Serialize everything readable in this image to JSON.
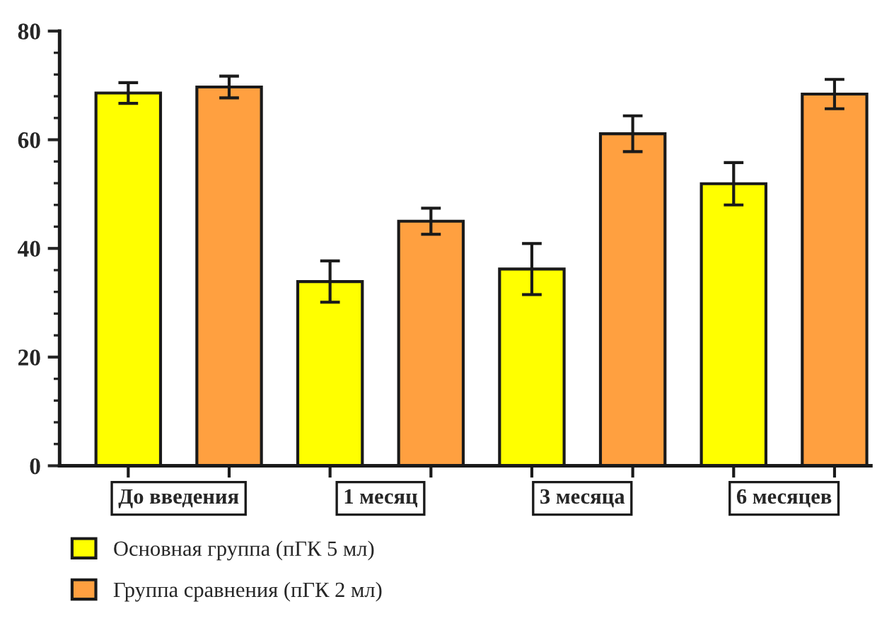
{
  "chart_data": {
    "type": "bar",
    "categories": [
      "До введения",
      "1 месяц",
      "3 месяца",
      "6 месяцев"
    ],
    "series": [
      {
        "name": "Основная группа (пГК 5 мл)",
        "color": "#ffff00",
        "values": [
          68.6,
          33.9,
          36.2,
          51.9
        ],
        "errors": [
          1.9,
          3.8,
          4.7,
          3.9
        ]
      },
      {
        "name": "Группа сравнения (пГК 2 мл)",
        "color": "#ffa040",
        "values": [
          69.7,
          45.0,
          61.1,
          68.4
        ],
        "errors": [
          2.0,
          2.4,
          3.3,
          2.7
        ]
      }
    ],
    "ylim": [
      0,
      80
    ],
    "yticks": [
      0,
      20,
      40,
      60,
      80
    ],
    "grid": false,
    "legend": "bottom left"
  }
}
